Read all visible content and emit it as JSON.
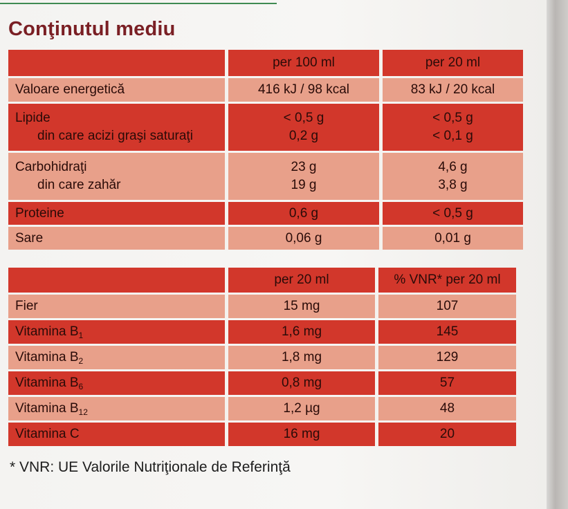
{
  "title": "Conţinutul mediu",
  "table1": {
    "headers": [
      "",
      "per 100 ml",
      "per 20 ml"
    ],
    "rows": [
      {
        "labels": [
          "Valoare energetică"
        ],
        "col1": [
          "416 kJ / 98 kcal"
        ],
        "col2": [
          "83 kJ / 20 kcal"
        ]
      },
      {
        "labels": [
          "Lipide",
          "din care acizi graşi saturaţi"
        ],
        "col1": [
          "< 0,5 g",
          "0,2 g"
        ],
        "col2": [
          "< 0,5 g",
          "< 0,1 g"
        ]
      },
      {
        "labels": [
          "Carbohidraţi",
          "din care zahăr"
        ],
        "col1": [
          "23 g",
          "19 g"
        ],
        "col2": [
          "4,6 g",
          "3,8 g"
        ]
      },
      {
        "labels": [
          "Proteine"
        ],
        "col1": [
          "0,6 g"
        ],
        "col2": [
          "< 0,5 g"
        ]
      },
      {
        "labels": [
          "Sare"
        ],
        "col1": [
          "0,06 g"
        ],
        "col2": [
          "0,01 g"
        ]
      }
    ]
  },
  "table2": {
    "headers": [
      "",
      "per 20 ml",
      "% VNR* per 20 ml"
    ],
    "rows": [
      {
        "label": "Fier",
        "sub": "",
        "amount": "15 mg",
        "vnr": "107"
      },
      {
        "label": "Vitamina B",
        "sub": "1",
        "amount": "1,6 mg",
        "vnr": "145"
      },
      {
        "label": "Vitamina B",
        "sub": "2",
        "amount": "1,8 mg",
        "vnr": "129"
      },
      {
        "label": "Vitamina B",
        "sub": "6",
        "amount": "0,8 mg",
        "vnr": "57"
      },
      {
        "label": "Vitamina B",
        "sub": "12",
        "amount": "1,2 µg",
        "vnr": "48"
      },
      {
        "label": "Vitamina C",
        "sub": "",
        "amount": "16 mg",
        "vnr": "20"
      }
    ]
  },
  "footnote": "* VNR: UE Valorile Nutriţionale de Referinţă"
}
